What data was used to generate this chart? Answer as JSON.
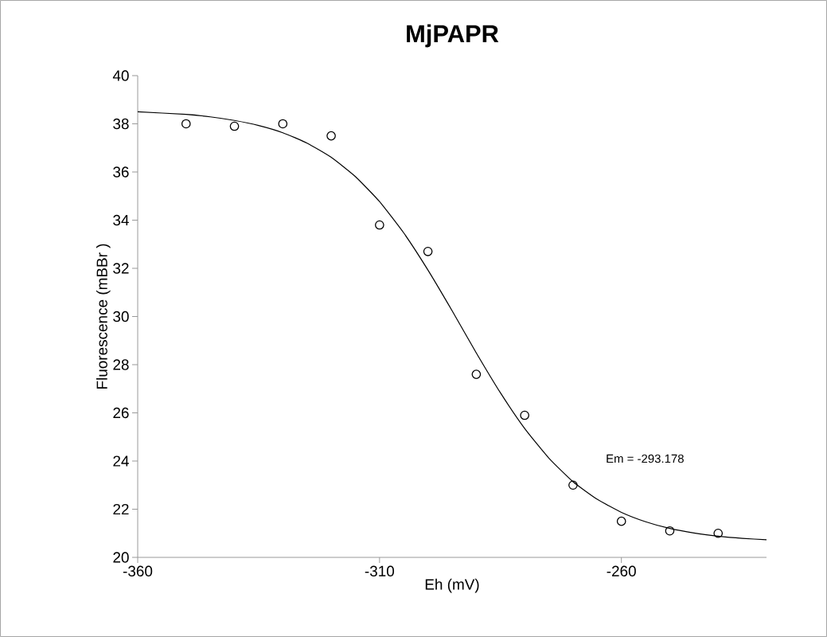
{
  "chart_data": {
    "type": "scatter",
    "title": "MjPAPR",
    "xlabel": "Eh (mV)",
    "ylabel": "Fluorescence (mBBr )",
    "xlim": [
      -360,
      -230
    ],
    "xticks": [
      -360,
      -310,
      -260
    ],
    "ylim": [
      20,
      40
    ],
    "yticks": [
      20,
      22,
      24,
      26,
      28,
      30,
      32,
      34,
      36,
      38,
      40
    ],
    "grid": false,
    "annotations": [
      "Em = -293.178"
    ],
    "series": [
      {
        "color": "#000000",
        "marker": "circle",
        "x": [
          -350,
          -340,
          -330,
          -320,
          -310,
          -300,
          -290,
          -280,
          -270,
          -260,
          -250,
          -240
        ],
        "values": [
          38.0,
          37.9,
          38.0,
          37.5,
          33.8,
          32.7,
          27.6,
          25.9,
          23.0,
          21.5,
          21.1,
          21.0
        ]
      },
      {
        "type": "line",
        "color": "#000000",
        "marker": "none",
        "line_style": "solid",
        "x": [
          -360,
          -350,
          -345,
          -340,
          -335,
          -330,
          -325,
          -320,
          -315,
          -310,
          -305,
          -300,
          -295,
          -290,
          -285,
          -280,
          -275,
          -270,
          -265,
          -260,
          -255,
          -250,
          -245,
          -240,
          -235,
          -230
        ],
        "values": [
          38.5,
          38.39,
          38.29,
          38.14,
          37.93,
          37.63,
          37.2,
          36.61,
          35.81,
          34.77,
          33.47,
          31.93,
          30.24,
          28.49,
          26.83,
          25.35,
          24.12,
          23.14,
          22.41,
          21.87,
          21.48,
          21.2,
          21.01,
          20.88,
          20.79,
          20.73
        ]
      }
    ]
  }
}
